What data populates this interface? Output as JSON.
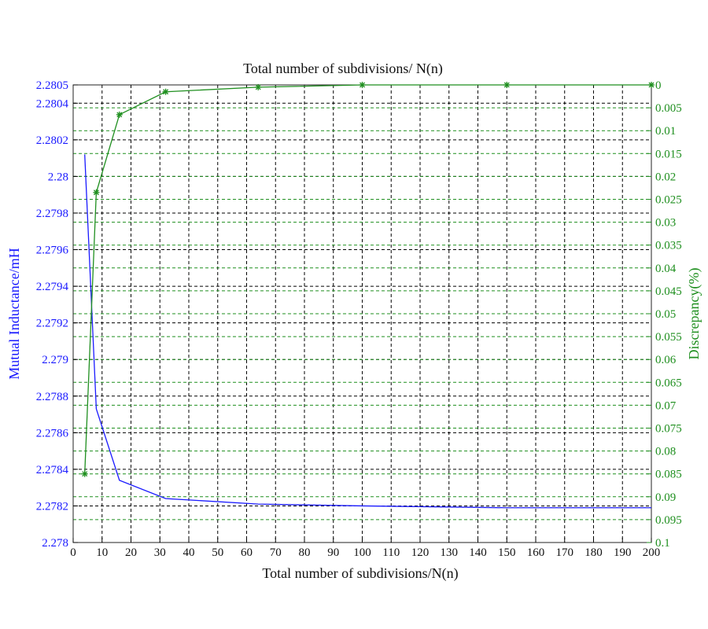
{
  "chart_data": {
    "type": "line",
    "title": "Total number of subdivisions/ N(n)",
    "xlabel": "Total number of subdivisions/N(n)",
    "ylabel_left": "Mutual Inductance/mH",
    "ylabel_right": "Discrepancy(%)",
    "xlim": [
      0,
      200
    ],
    "ylim_left": [
      2.278,
      2.2805
    ],
    "ylim_right": [
      0.1,
      0
    ],
    "right_axis_inverted": true,
    "grid": true,
    "x_ticks": [
      0,
      10,
      20,
      30,
      40,
      50,
      60,
      70,
      80,
      90,
      100,
      110,
      120,
      130,
      140,
      150,
      160,
      170,
      180,
      190,
      200
    ],
    "left_ticks": [
      "2.278",
      "2.2782",
      "2.2784",
      "2.2786",
      "2.2788",
      "2.279",
      "2.2792",
      "2.2794",
      "2.2796",
      "2.2798",
      "2.28",
      "2.2802",
      "2.2804",
      "2.2805"
    ],
    "right_ticks": [
      "0",
      "0.005",
      "0.01",
      "0.015",
      "0.02",
      "0.025",
      "0.03",
      "0.035",
      "0.04",
      "0.045",
      "0.05",
      "0.055",
      "0.06",
      "0.065",
      "0.07",
      "0.075",
      "0.08",
      "0.085",
      "0.09",
      "0.095",
      "0.1"
    ],
    "series": [
      {
        "axis": "left",
        "color": "#1a1aff",
        "marker": "none",
        "x": [
          4,
          8,
          16,
          32,
          64,
          100,
          150,
          200
        ],
        "y": [
          2.28012,
          2.27873,
          2.27834,
          2.27824,
          2.27821,
          2.2782,
          2.27819,
          2.27819
        ]
      },
      {
        "axis": "right",
        "color": "#1f8f1f",
        "marker": "star",
        "x": [
          4,
          8,
          16,
          32,
          64,
          100,
          150,
          200
        ],
        "y": [
          0.085,
          0.0235,
          0.0065,
          0.0015,
          0.0005,
          0,
          0,
          0
        ]
      }
    ]
  }
}
